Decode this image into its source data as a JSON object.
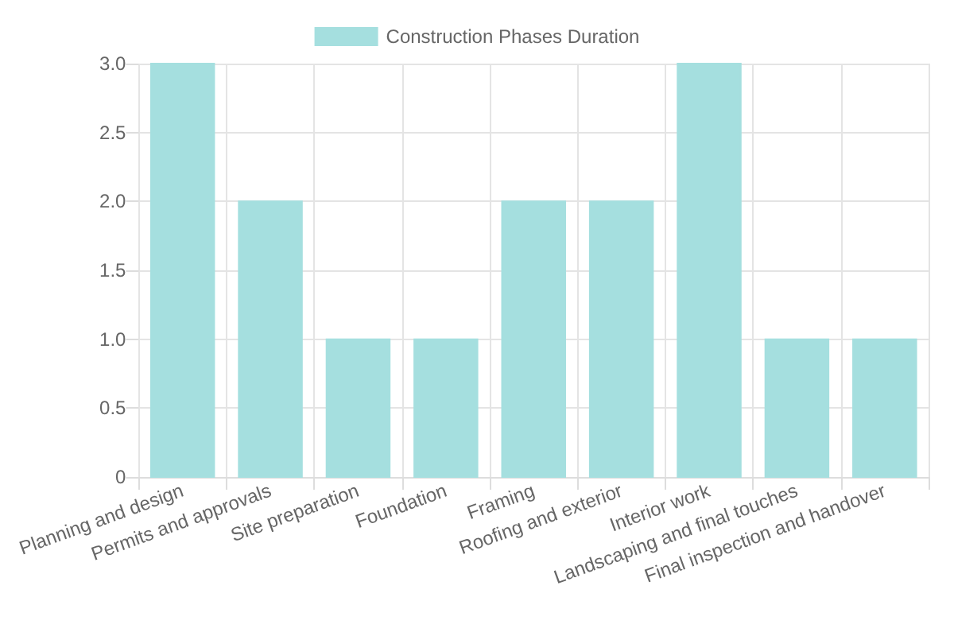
{
  "chart_data": {
    "type": "bar",
    "categories": [
      "Planning and design",
      "Permits and approvals",
      "Site preparation",
      "Foundation",
      "Framing",
      "Roofing and exterior",
      "Interior work",
      "Landscaping and final touches",
      "Final inspection and handover"
    ],
    "series": [
      {
        "name": "Construction Phases Duration",
        "color": "#a5dfdf",
        "values": [
          3,
          2,
          1,
          1,
          2,
          2,
          3,
          1,
          1
        ]
      }
    ],
    "ylim": [
      0,
      3
    ],
    "yticks": [
      0,
      0.5,
      {
        "value": 1,
        "label": "1.0"
      },
      1.5,
      {
        "value": 2,
        "label": "2.0"
      },
      2.5,
      {
        "value": 3,
        "label": "3.0"
      }
    ],
    "grid": true,
    "legend": "top"
  }
}
